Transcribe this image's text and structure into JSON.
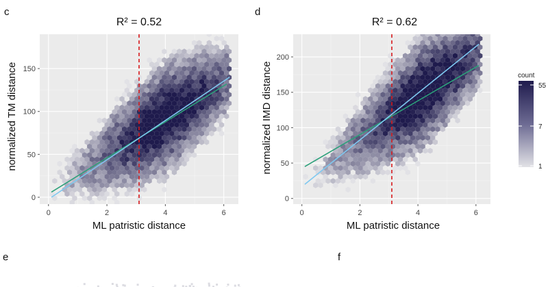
{
  "panels": {
    "c": "c",
    "d": "d",
    "e": "e",
    "f": "f"
  },
  "legend": {
    "title": "count",
    "labels": [
      "55",
      "7",
      "1"
    ],
    "color_high": "#1f1b4d",
    "color_low": "#e2e2e6"
  },
  "chart_data": [
    {
      "id": "c",
      "type": "scatter",
      "subtype": "hexbin",
      "title": "R² = 0.52",
      "xlabel": "ML patristic distance",
      "ylabel": "normalized TM distance",
      "xlim": [
        -0.3,
        6.5
      ],
      "ylim": [
        -8,
        190
      ],
      "xticks": [
        0,
        2,
        4,
        6
      ],
      "yticks": [
        0,
        50,
        100,
        150
      ],
      "vline_x": 3.1,
      "vline_color": "#d7191c",
      "grid": true,
      "trend_lines": [
        {
          "color": "#2ca07a",
          "points": [
            [
              0.1,
              6
            ],
            [
              6.1,
              132
            ]
          ]
        },
        {
          "color": "#7ec8f0",
          "points": [
            [
              0.1,
              0
            ],
            [
              6.2,
              140
            ]
          ]
        }
      ],
      "cloud": {
        "center": [
          4.0,
          92
        ],
        "spine_slope": 21.5,
        "bounds_x": [
          0.05,
          6.25
        ]
      }
    },
    {
      "id": "d",
      "type": "scatter",
      "subtype": "hexbin",
      "title": "R² = 0.62",
      "xlabel": "ML patristic distance",
      "ylabel": "normalized IMD distance",
      "xlim": [
        -0.3,
        6.5
      ],
      "ylim": [
        -8,
        232
      ],
      "xticks": [
        0,
        2,
        4,
        6
      ],
      "yticks": [
        0,
        50,
        100,
        150,
        200
      ],
      "vline_x": 3.1,
      "vline_color": "#d7191c",
      "grid": true,
      "trend_lines": [
        {
          "color": "#2ca07a",
          "points": [
            [
              0.1,
              45
            ],
            [
              6.1,
              188
            ]
          ]
        },
        {
          "color": "#7ec8f0",
          "points": [
            [
              0.1,
              20
            ],
            [
              6.1,
              218
            ]
          ]
        }
      ],
      "cloud": {
        "center": [
          4.2,
          150
        ],
        "spine_slope": 31,
        "bounds_x": [
          0.05,
          6.2
        ]
      }
    }
  ]
}
